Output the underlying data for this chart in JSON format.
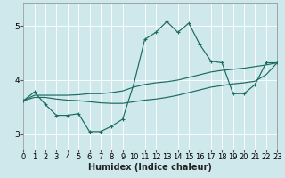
{
  "xlabel": "Humidex (Indice chaleur)",
  "bg_color": "#cfe8ec",
  "grid_color": "#b0d4d8",
  "line_color": "#1a6b60",
  "series": [
    {
      "x": [
        0,
        1,
        2,
        3,
        4,
        5,
        6,
        7,
        8,
        9,
        10,
        11,
        12,
        13,
        14,
        15,
        16,
        17,
        18,
        19,
        20,
        21,
        22,
        23
      ],
      "y": [
        3.62,
        3.78,
        3.55,
        3.35,
        3.35,
        3.38,
        3.05,
        3.05,
        3.15,
        3.28,
        3.92,
        4.75,
        4.88,
        5.08,
        4.88,
        5.05,
        4.65,
        4.35,
        4.32,
        3.75,
        3.75,
        3.92,
        4.32,
        4.32
      ],
      "marker": true
    },
    {
      "x": [
        0,
        1,
        2,
        3,
        4,
        5,
        6,
        7,
        8,
        9,
        10,
        11,
        12,
        13,
        14,
        15,
        16,
        17,
        18,
        19,
        20,
        21,
        22,
        23
      ],
      "y": [
        3.62,
        3.72,
        3.72,
        3.72,
        3.72,
        3.73,
        3.75,
        3.75,
        3.77,
        3.8,
        3.87,
        3.92,
        3.95,
        3.97,
        4.0,
        4.05,
        4.1,
        4.15,
        4.18,
        4.2,
        4.22,
        4.25,
        4.28,
        4.32
      ],
      "marker": false
    },
    {
      "x": [
        0,
        1,
        2,
        3,
        4,
        5,
        6,
        7,
        8,
        9,
        10,
        11,
        12,
        13,
        14,
        15,
        16,
        17,
        18,
        19,
        20,
        21,
        22,
        23
      ],
      "y": [
        3.62,
        3.68,
        3.68,
        3.65,
        3.63,
        3.62,
        3.6,
        3.58,
        3.57,
        3.57,
        3.6,
        3.63,
        3.65,
        3.68,
        3.72,
        3.77,
        3.82,
        3.87,
        3.9,
        3.93,
        3.95,
        3.98,
        4.1,
        4.32
      ],
      "marker": false
    }
  ],
  "xlim": [
    0,
    23
  ],
  "ylim": [
    2.72,
    5.42
  ],
  "yticks": [
    3,
    4,
    5
  ],
  "xticks": [
    0,
    1,
    2,
    3,
    4,
    5,
    6,
    7,
    8,
    9,
    10,
    11,
    12,
    13,
    14,
    15,
    16,
    17,
    18,
    19,
    20,
    21,
    22,
    23
  ],
  "tick_fontsize": 6.0,
  "xlabel_fontsize": 7.0
}
